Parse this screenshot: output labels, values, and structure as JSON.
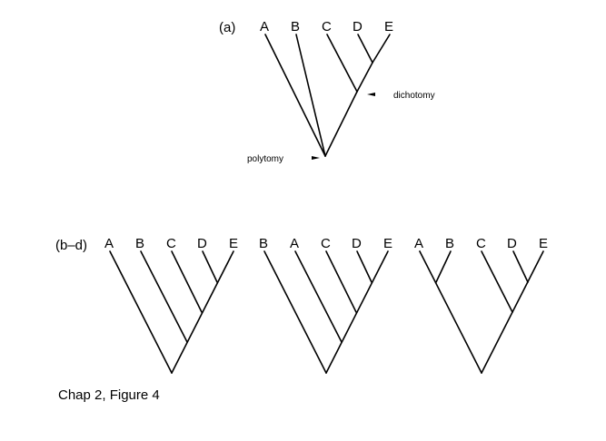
{
  "figure_caption": "Chap 2, Figure 4",
  "panel_a": {
    "label": "(a)",
    "taxa": [
      "A",
      "B",
      "C",
      "D",
      "E"
    ],
    "annotations": {
      "dichotomy": "dichotomy",
      "polytomy": "polytomy"
    }
  },
  "panels_bd": {
    "label": "(b–d)",
    "tree_b": {
      "taxa": [
        "A",
        "B",
        "C",
        "D",
        "E"
      ]
    },
    "tree_c": {
      "taxa": [
        "B",
        "A",
        "C",
        "D",
        "E"
      ]
    },
    "tree_d": {
      "taxa": [
        "A",
        "B",
        "C",
        "D",
        "E"
      ]
    }
  },
  "colors": {
    "ink": "#000000",
    "background": "#ffffff"
  }
}
